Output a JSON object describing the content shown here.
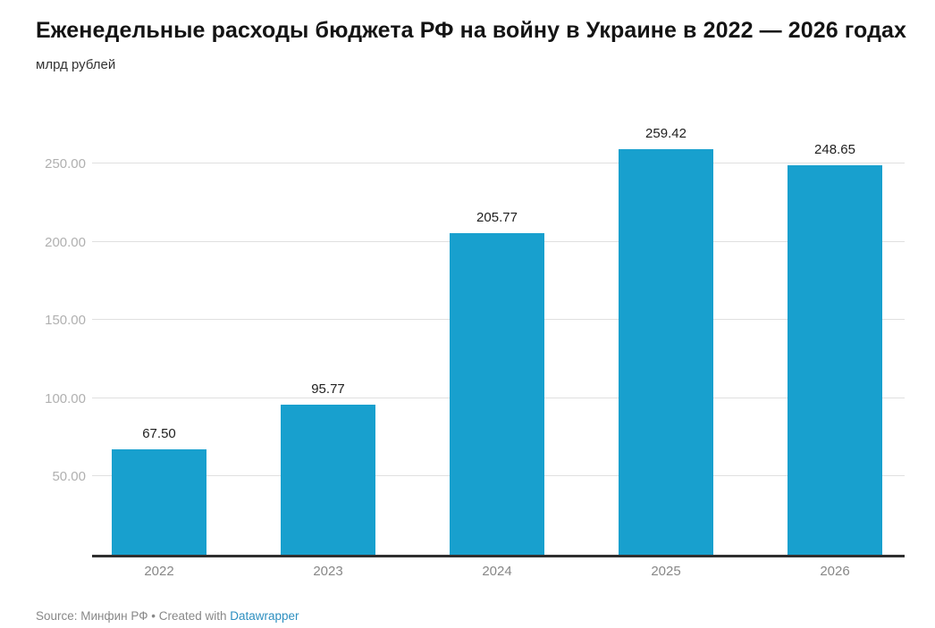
{
  "header": {
    "title": "Еженедельные расходы бюджета РФ на войну в Украине в 2022 — 2026 годах",
    "subtitle": "млрд рублей"
  },
  "footer": {
    "source_prefix": "Source: Минфин РФ • Created with ",
    "link_label": "Datawrapper"
  },
  "chart_data": {
    "type": "bar",
    "title": "Еженедельные расходы бюджета РФ на войну в Украине в 2022 — 2026 годах",
    "ylabel": "млрд рублей",
    "xlabel": "",
    "categories": [
      "2022",
      "2023",
      "2024",
      "2025",
      "2026"
    ],
    "values": [
      67.5,
      95.77,
      205.77,
      259.42,
      248.65
    ],
    "value_labels": [
      "67.50",
      "95.77",
      "205.77",
      "259.42",
      "248.65"
    ],
    "y_ticks": [
      50,
      100,
      150,
      200,
      250
    ],
    "y_tick_labels": [
      "50.00",
      "100.00",
      "150.00",
      "200.00",
      "250.00"
    ],
    "ylim": [
      0,
      268
    ],
    "grid": true,
    "legend": "none",
    "colors": {
      "bar": "#18a0ce",
      "grid": "#e0e0e0",
      "axis_line": "#2f2f2f",
      "y_tick_text": "#b0b0b0",
      "x_tick_text": "#878787",
      "value_text": "#1f1f1f",
      "title_text": "#141414",
      "source_text": "#888888",
      "link": "#2d8fc0"
    }
  }
}
